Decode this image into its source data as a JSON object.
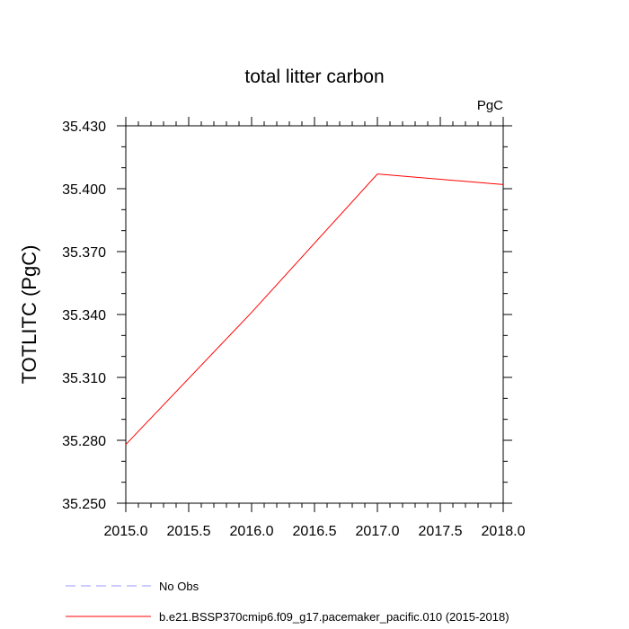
{
  "chart_data": {
    "type": "line",
    "title": "total litter carbon",
    "units_label": "PgC",
    "ylabel": "TOTLITC  (PgC)",
    "xlabel": "",
    "xlim": [
      2015.0,
      2018.0
    ],
    "ylim": [
      35.25,
      35.43
    ],
    "x_ticks": [
      "2015.0",
      "2015.5",
      "2016.0",
      "2016.5",
      "2017.0",
      "2017.5",
      "2018.0"
    ],
    "y_ticks": [
      "35.250",
      "35.280",
      "35.310",
      "35.340",
      "35.370",
      "35.400",
      "35.430"
    ],
    "grid": false,
    "legend_position": "bottom",
    "series": [
      {
        "name": "b.e21.BSSP370cmip6.f09_g17.pacemaker_pacific.010 (2015-2018)",
        "color": "#ff0000",
        "dash": "solid",
        "x": [
          2015.0,
          2016.0,
          2017.0,
          2018.0
        ],
        "values": [
          35.278,
          35.341,
          35.407,
          35.402
        ]
      }
    ],
    "legend": [
      {
        "label": "No Obs",
        "color": "#9999ff",
        "dash": "dashed"
      },
      {
        "label": "b.e21.BSSP370cmip6.f09_g17.pacemaker_pacific.010 (2015-2018)",
        "color": "#ff0000",
        "dash": "solid"
      }
    ]
  }
}
